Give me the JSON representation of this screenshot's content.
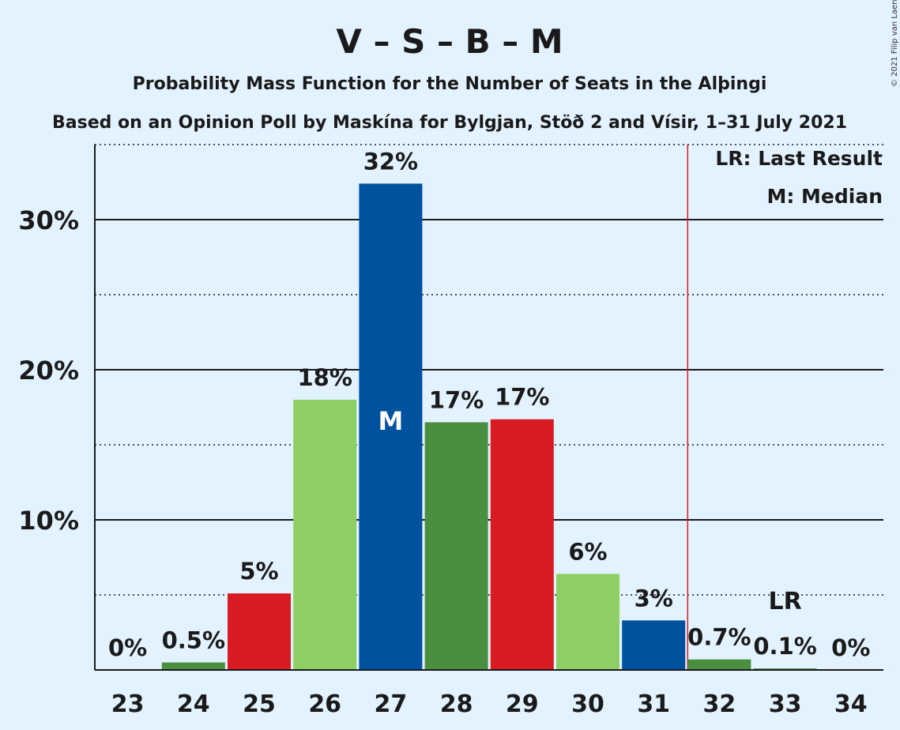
{
  "chart_data": {
    "type": "bar",
    "title": "V – S – B – M",
    "subtitle": "Probability Mass Function for the Number of Seats in the Alþingi",
    "subtitle2": "Based on an Opinion Poll by Maskína for Bylgjan, Stöð 2 and Vísir, 1–31 July 2021",
    "copyright": "© 2021 Filip van Laenen",
    "legend": {
      "lr": "LR: Last Result",
      "m": "M: Median",
      "placement": "top-right"
    },
    "categories": [
      "23",
      "24",
      "25",
      "26",
      "27",
      "28",
      "29",
      "30",
      "31",
      "32",
      "33",
      "34"
    ],
    "values": [
      0,
      0.5,
      5.1,
      18.0,
      32.4,
      16.5,
      16.7,
      6.4,
      3.3,
      0.7,
      0.1,
      0
    ],
    "labels": [
      "0%",
      "0.5%",
      "5%",
      "18%",
      "32%",
      "17%",
      "17%",
      "6%",
      "3%",
      "0.7%",
      "0.1%",
      "0%"
    ],
    "colors": [
      "#4a8f3f",
      "#4a8f3f",
      "#d81b22",
      "#8ecf63",
      "#00529f",
      "#4a8f3f",
      "#d81b22",
      "#8ecf63",
      "#00529f",
      "#4a8f3f",
      "#4a8f3f",
      "#4a8f3f"
    ],
    "yticks": [
      10,
      20,
      30
    ],
    "ytick_labels": [
      "10%",
      "20%",
      "30%"
    ],
    "ylim": [
      0,
      35
    ],
    "median_seat": "27",
    "median_label": "M",
    "last_result_seat": "33",
    "last_result_label": "LR",
    "majority_line_after": "31",
    "majority_line_color": "#d81b22",
    "grid": true
  }
}
